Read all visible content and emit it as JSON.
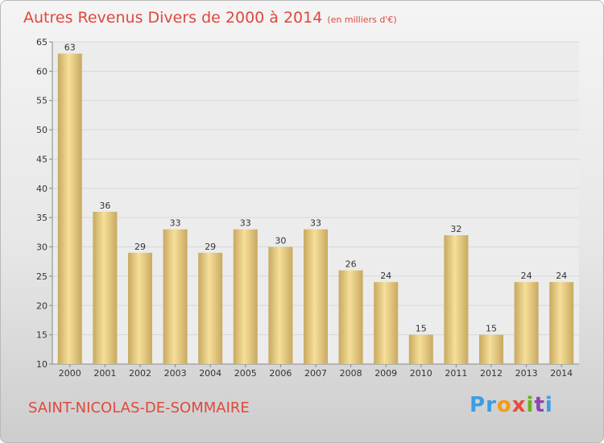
{
  "header": {
    "title": "Autres Revenus Divers de 2000 à 2014",
    "unit": "(en milliers d'€)"
  },
  "footer": {
    "commune": "SAINT-NICOLAS-DE-SOMMAIRE",
    "brand_letters": [
      "P",
      "r",
      "o",
      "x",
      "i",
      "t",
      "i"
    ],
    "brand_colors": [
      "#3a9ee4",
      "#3a9ee4",
      "#f39c12",
      "#e74c3c",
      "#6ab023",
      "#8e44ad",
      "#3a9ee4"
    ]
  },
  "colors": {
    "title": "#e0483c",
    "bar_light": "#f6df9a",
    "bar_dark": "#c8a95f",
    "grid": "#d8d8d8",
    "text": "#333333"
  },
  "chart_data": {
    "type": "bar",
    "categories": [
      "2000",
      "2001",
      "2002",
      "2003",
      "2004",
      "2005",
      "2006",
      "2007",
      "2008",
      "2009",
      "2010",
      "2011",
      "2012",
      "2013",
      "2014"
    ],
    "values": [
      63,
      36,
      29,
      33,
      29,
      33,
      30,
      33,
      26,
      24,
      15,
      32,
      15,
      24,
      24
    ],
    "ylim": [
      10,
      65
    ],
    "yticks": [
      10,
      15,
      20,
      25,
      30,
      35,
      40,
      45,
      50,
      55,
      60,
      65
    ],
    "grid": true
  }
}
